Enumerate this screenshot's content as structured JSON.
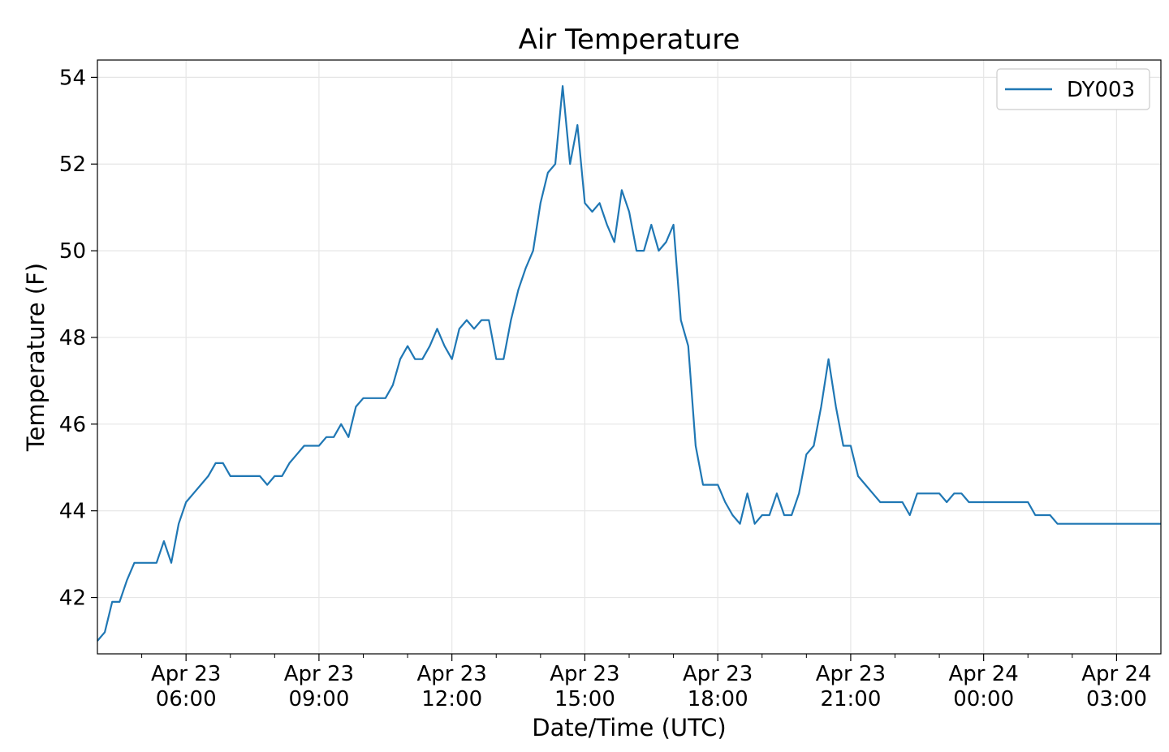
{
  "chart_data": {
    "type": "line",
    "title": "Air Temperature",
    "xlabel": "Date/Time (UTC)",
    "ylabel": "Temperature (F)",
    "ylim": [
      40.7,
      54.4
    ],
    "xlim": [
      "2024-04-23T04:00",
      "2024-04-24T04:00"
    ],
    "grid": true,
    "legend_position": "top-right",
    "line_color": "#1f77b4",
    "y_ticks": [
      42,
      44,
      46,
      48,
      50,
      52,
      54
    ],
    "y_tick_labels": [
      "42",
      "44",
      "46",
      "48",
      "50",
      "52",
      "54"
    ],
    "x_major_ticks": [
      "2024-04-23T06:00",
      "2024-04-23T09:00",
      "2024-04-23T12:00",
      "2024-04-23T15:00",
      "2024-04-23T18:00",
      "2024-04-23T21:00",
      "2024-04-24T00:00",
      "2024-04-24T03:00"
    ],
    "x_tick_labels": [
      [
        "Apr 23",
        "06:00"
      ],
      [
        "Apr 23",
        "09:00"
      ],
      [
        "Apr 23",
        "12:00"
      ],
      [
        "Apr 23",
        "15:00"
      ],
      [
        "Apr 23",
        "18:00"
      ],
      [
        "Apr 23",
        "21:00"
      ],
      [
        "Apr 24",
        "00:00"
      ],
      [
        "Apr 24",
        "03:00"
      ]
    ],
    "x_minor_ticks": [
      "2024-04-23T05:00",
      "2024-04-23T07:00",
      "2024-04-23T08:00",
      "2024-04-23T10:00",
      "2024-04-23T11:00",
      "2024-04-23T13:00",
      "2024-04-23T14:00",
      "2024-04-23T16:00",
      "2024-04-23T17:00",
      "2024-04-23T19:00",
      "2024-04-23T20:00",
      "2024-04-23T22:00",
      "2024-04-23T23:00",
      "2024-04-24T01:00",
      "2024-04-24T02:00"
    ],
    "series": [
      {
        "name": "DY003",
        "x": [
          "2024-04-23T04:00",
          "2024-04-23T04:10",
          "2024-04-23T04:20",
          "2024-04-23T04:30",
          "2024-04-23T04:40",
          "2024-04-23T04:50",
          "2024-04-23T05:00",
          "2024-04-23T05:10",
          "2024-04-23T05:20",
          "2024-04-23T05:30",
          "2024-04-23T05:40",
          "2024-04-23T05:50",
          "2024-04-23T06:00",
          "2024-04-23T06:10",
          "2024-04-23T06:20",
          "2024-04-23T06:30",
          "2024-04-23T06:40",
          "2024-04-23T06:50",
          "2024-04-23T07:00",
          "2024-04-23T07:10",
          "2024-04-23T07:20",
          "2024-04-23T07:30",
          "2024-04-23T07:40",
          "2024-04-23T07:50",
          "2024-04-23T08:00",
          "2024-04-23T08:10",
          "2024-04-23T08:20",
          "2024-04-23T08:30",
          "2024-04-23T08:40",
          "2024-04-23T08:50",
          "2024-04-23T09:00",
          "2024-04-23T09:10",
          "2024-04-23T09:20",
          "2024-04-23T09:30",
          "2024-04-23T09:40",
          "2024-04-23T09:50",
          "2024-04-23T10:00",
          "2024-04-23T10:10",
          "2024-04-23T10:20",
          "2024-04-23T10:30",
          "2024-04-23T10:40",
          "2024-04-23T10:50",
          "2024-04-23T11:00",
          "2024-04-23T11:10",
          "2024-04-23T11:20",
          "2024-04-23T11:30",
          "2024-04-23T11:40",
          "2024-04-23T11:50",
          "2024-04-23T12:00",
          "2024-04-23T12:10",
          "2024-04-23T12:20",
          "2024-04-23T12:30",
          "2024-04-23T12:40",
          "2024-04-23T12:50",
          "2024-04-23T13:00",
          "2024-04-23T13:10",
          "2024-04-23T13:20",
          "2024-04-23T13:30",
          "2024-04-23T13:40",
          "2024-04-23T13:50",
          "2024-04-23T14:00",
          "2024-04-23T14:10",
          "2024-04-23T14:20",
          "2024-04-23T14:30",
          "2024-04-23T14:40",
          "2024-04-23T14:50",
          "2024-04-23T15:00",
          "2024-04-23T15:10",
          "2024-04-23T15:20",
          "2024-04-23T15:30",
          "2024-04-23T15:40",
          "2024-04-23T15:50",
          "2024-04-23T16:00",
          "2024-04-23T16:10",
          "2024-04-23T16:20",
          "2024-04-23T16:30",
          "2024-04-23T16:40",
          "2024-04-23T16:50",
          "2024-04-23T17:00",
          "2024-04-23T17:10",
          "2024-04-23T17:20",
          "2024-04-23T17:30",
          "2024-04-23T17:40",
          "2024-04-23T17:50",
          "2024-04-23T18:00",
          "2024-04-23T18:10",
          "2024-04-23T18:20",
          "2024-04-23T18:30",
          "2024-04-23T18:40",
          "2024-04-23T18:50",
          "2024-04-23T19:00",
          "2024-04-23T19:10",
          "2024-04-23T19:20",
          "2024-04-23T19:30",
          "2024-04-23T19:40",
          "2024-04-23T19:50",
          "2024-04-23T20:00",
          "2024-04-23T20:10",
          "2024-04-23T20:20",
          "2024-04-23T20:30",
          "2024-04-23T20:40",
          "2024-04-23T20:50",
          "2024-04-23T21:00",
          "2024-04-23T21:10",
          "2024-04-23T21:20",
          "2024-04-23T21:30",
          "2024-04-23T21:40",
          "2024-04-23T21:50",
          "2024-04-23T22:00",
          "2024-04-23T22:10",
          "2024-04-23T22:20",
          "2024-04-23T22:30",
          "2024-04-23T22:40",
          "2024-04-23T22:50",
          "2024-04-23T23:00",
          "2024-04-23T23:10",
          "2024-04-23T23:20",
          "2024-04-23T23:30",
          "2024-04-23T23:40",
          "2024-04-23T23:50",
          "2024-04-24T00:00",
          "2024-04-24T00:10",
          "2024-04-24T00:20",
          "2024-04-24T00:30",
          "2024-04-24T00:40",
          "2024-04-24T00:50",
          "2024-04-24T01:00",
          "2024-04-24T01:10",
          "2024-04-24T01:20",
          "2024-04-24T01:30",
          "2024-04-24T01:40",
          "2024-04-24T01:50",
          "2024-04-24T02:00",
          "2024-04-24T02:10",
          "2024-04-24T02:20",
          "2024-04-24T02:30",
          "2024-04-24T02:40",
          "2024-04-24T02:50",
          "2024-04-24T03:00",
          "2024-04-24T03:10",
          "2024-04-24T03:20",
          "2024-04-24T03:30",
          "2024-04-24T03:40",
          "2024-04-24T03:50",
          "2024-04-24T04:00"
        ],
        "y": [
          41.0,
          41.2,
          41.9,
          41.9,
          42.4,
          42.8,
          42.8,
          42.8,
          42.8,
          43.3,
          42.8,
          43.7,
          44.2,
          44.4,
          44.6,
          44.8,
          45.1,
          45.1,
          44.8,
          44.8,
          44.8,
          44.8,
          44.8,
          44.6,
          44.8,
          44.8,
          45.1,
          45.3,
          45.5,
          45.5,
          45.5,
          45.7,
          45.7,
          46.0,
          45.7,
          46.4,
          46.6,
          46.6,
          46.6,
          46.6,
          46.9,
          47.5,
          47.8,
          47.5,
          47.5,
          47.8,
          48.2,
          47.8,
          47.5,
          48.2,
          48.4,
          48.2,
          48.4,
          48.4,
          47.5,
          47.5,
          48.4,
          49.1,
          49.6,
          50.0,
          51.1,
          51.8,
          52.0,
          53.8,
          52.0,
          52.9,
          51.1,
          50.9,
          51.1,
          50.6,
          50.2,
          51.4,
          50.9,
          50.0,
          50.0,
          50.6,
          50.0,
          50.2,
          50.6,
          48.4,
          47.8,
          45.5,
          44.6,
          44.6,
          44.6,
          44.2,
          43.9,
          43.7,
          44.4,
          43.7,
          43.9,
          43.9,
          44.4,
          43.9,
          43.9,
          44.4,
          45.3,
          45.5,
          46.4,
          47.5,
          46.4,
          45.5,
          45.5,
          44.8,
          44.6,
          44.4,
          44.2,
          44.2,
          44.2,
          44.2,
          43.9,
          44.4,
          44.4,
          44.4,
          44.4,
          44.2,
          44.4,
          44.4,
          44.2,
          44.2,
          44.2,
          44.2,
          44.2,
          44.2,
          44.2,
          44.2,
          44.2,
          43.9,
          43.9,
          43.9,
          43.7,
          43.7,
          43.7,
          43.7,
          43.7,
          43.7,
          43.7,
          43.7,
          43.7,
          43.7,
          43.7,
          43.7,
          43.7,
          43.7,
          43.7
        ]
      }
    ]
  }
}
